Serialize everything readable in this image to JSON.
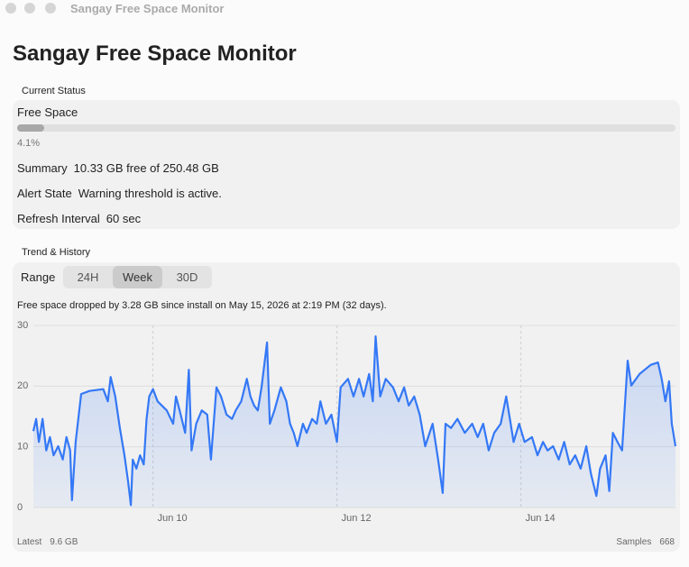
{
  "window_title": "Sangay Free Space Monitor",
  "title": "Sangay Free Space Monitor",
  "status": {
    "section_label": "Current Status",
    "free_space_label": "Free Space",
    "progress": {
      "value": 4.1,
      "label": "4.1%"
    },
    "summary": {
      "label": "Summary",
      "value": "10.33 GB free of 250.48 GB"
    },
    "alert": {
      "label": "Alert State",
      "value": "Warning threshold is active."
    },
    "refresh": {
      "label": "Refresh Interval",
      "value": "60 sec"
    }
  },
  "trend": {
    "section_label": "Trend & History",
    "range_label": "Range",
    "segments": [
      "24H",
      "Week",
      "30D"
    ],
    "selected_segment": 1,
    "caption": "Free space dropped by 3.28 GB since install on May 15, 2026 at 2:19 PM (32 days).",
    "latest_label": "Latest",
    "latest_value": "9.6 GB",
    "samples_label": "Samples",
    "samples_value": 668
  },
  "chart_data": {
    "type": "line",
    "color": "#3478f6",
    "x": [
      8.7,
      8.73,
      8.76,
      8.8,
      8.84,
      8.88,
      8.92,
      8.97,
      9.02,
      9.06,
      9.1,
      9.12,
      9.16,
      9.22,
      9.31,
      9.46,
      9.51,
      9.54,
      9.59,
      9.64,
      9.69,
      9.73,
      9.76,
      9.78,
      9.82,
      9.86,
      9.9,
      9.93,
      9.96,
      10.0,
      10.05,
      10.15,
      10.22,
      10.25,
      10.29,
      10.35,
      10.39,
      10.42,
      10.47,
      10.53,
      10.59,
      10.63,
      10.69,
      10.74,
      10.8,
      10.86,
      10.9,
      10.96,
      11.02,
      11.06,
      11.1,
      11.14,
      11.18,
      11.24,
      11.27,
      11.32,
      11.39,
      11.45,
      11.49,
      11.53,
      11.57,
      11.63,
      11.67,
      11.73,
      11.78,
      11.82,
      11.88,
      11.94,
      12.0,
      12.04,
      12.12,
      12.18,
      12.24,
      12.29,
      12.35,
      12.39,
      12.42,
      12.47,
      12.53,
      12.61,
      12.67,
      12.73,
      12.78,
      12.84,
      12.9,
      12.96,
      13.04,
      13.1,
      13.15,
      13.18,
      13.24,
      13.31,
      13.39,
      13.47,
      13.53,
      13.59,
      13.65,
      13.71,
      13.78,
      13.84,
      13.88,
      13.92,
      13.98,
      14.04,
      14.12,
      14.18,
      14.24,
      14.29,
      14.35,
      14.41,
      14.47,
      14.53,
      14.59,
      14.65,
      14.71,
      14.76,
      14.82,
      14.86,
      14.92,
      14.96,
      15.0,
      15.05,
      15.1,
      15.16,
      15.2,
      15.29,
      15.41,
      15.49,
      15.53,
      15.57,
      15.61,
      15.64,
      15.68
    ],
    "values": [
      12.6,
      14.6,
      10.8,
      14.6,
      9.4,
      11.6,
      8.6,
      10.1,
      7.9,
      11.6,
      9.4,
      1.2,
      10.8,
      18.7,
      19.2,
      19.5,
      17.5,
      21.5,
      18.3,
      13.1,
      8.6,
      4.2,
      0.4,
      7.9,
      6.4,
      8.6,
      7.1,
      14.6,
      18.3,
      19.5,
      17.5,
      16.0,
      13.8,
      18.3,
      16.0,
      12.3,
      22.7,
      9.4,
      13.8,
      16.0,
      15.3,
      7.9,
      19.8,
      18.3,
      15.3,
      14.6,
      16.0,
      17.5,
      21.2,
      18.3,
      16.8,
      16.0,
      19.8,
      27.2,
      13.8,
      16.0,
      19.8,
      17.5,
      13.8,
      12.3,
      10.1,
      13.8,
      12.3,
      14.6,
      13.8,
      17.5,
      13.8,
      15.3,
      10.8,
      19.8,
      21.2,
      18.3,
      21.2,
      18.3,
      22.0,
      17.5,
      28.2,
      18.3,
      21.2,
      19.8,
      17.5,
      19.8,
      16.8,
      18.3,
      15.3,
      10.1,
      13.8,
      7.9,
      2.4,
      13.8,
      13.1,
      14.6,
      12.3,
      13.8,
      11.6,
      13.8,
      9.4,
      12.3,
      13.8,
      18.3,
      14.6,
      10.8,
      13.8,
      10.8,
      11.6,
      8.6,
      10.8,
      9.4,
      10.1,
      7.9,
      10.8,
      7.1,
      8.6,
      6.4,
      10.1,
      5.6,
      1.9,
      6.4,
      8.6,
      2.7,
      12.3,
      10.8,
      9.4,
      24.2,
      20.1,
      22.0,
      23.5,
      23.9,
      21.2,
      17.5,
      20.8,
      13.8,
      10.1
    ],
    "xlim": [
      8.7,
      15.68
    ],
    "xticks": [
      {
        "value": 10,
        "label": "Jun 10"
      },
      {
        "value": 12,
        "label": "Jun 12"
      },
      {
        "value": 14,
        "label": "Jun 14"
      }
    ],
    "ylim": [
      0,
      30
    ],
    "yticks": [
      0,
      10,
      20,
      30
    ],
    "grid": true
  }
}
